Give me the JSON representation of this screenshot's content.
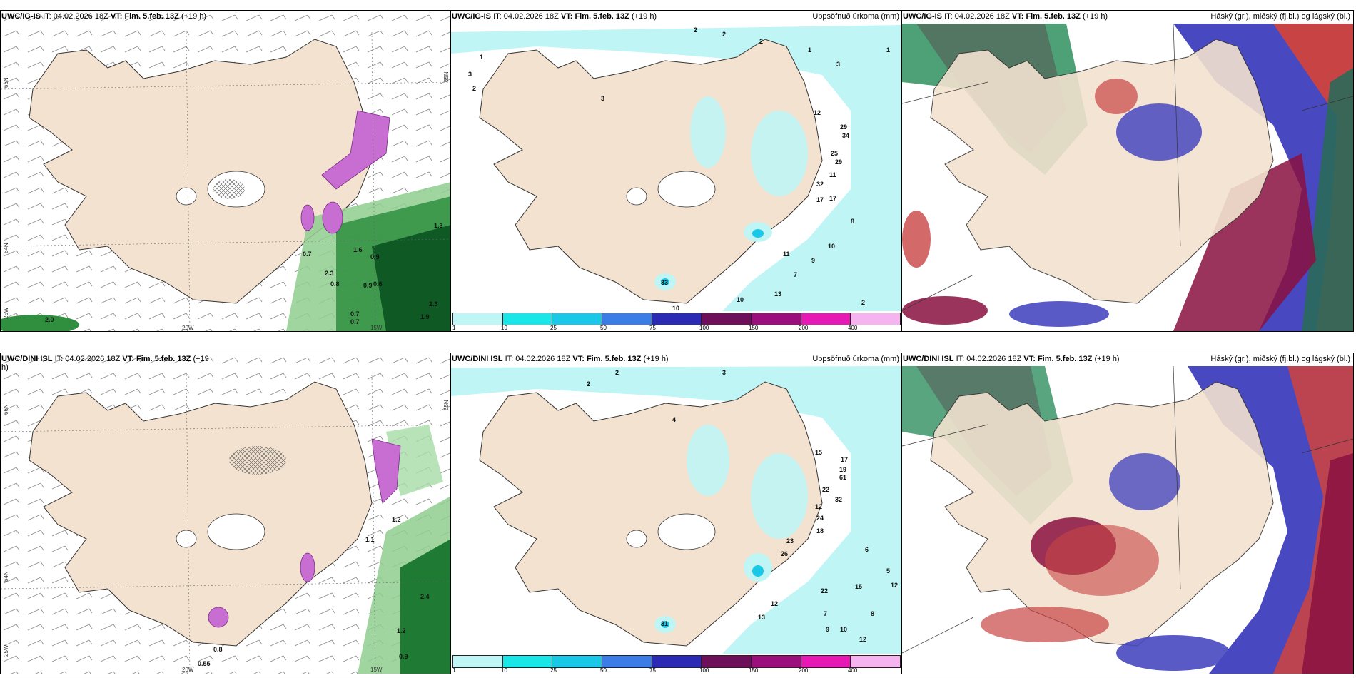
{
  "panels": {
    "top_left": {
      "model": "UWC/IG-IS",
      "it_label": "IT:",
      "it": "04.02.2026 18Z",
      "vt_label": "VT:",
      "vt": "Fim. 5.feb. 13Z",
      "lead": "(+19 h)",
      "title": ""
    },
    "top_mid": {
      "model": "UWC/IG-IS",
      "it_label": "IT:",
      "it": "04.02.2026 18Z",
      "vt_label": "VT:",
      "vt": "Fim. 5.feb. 13Z",
      "lead": "(+19 h)",
      "title": "Uppsöfnuð úrkoma (mm)"
    },
    "top_right": {
      "model": "UWC/IG-IS",
      "it_label": "IT:",
      "it": "04.02.2026 18Z",
      "vt_label": "VT:",
      "vt": "Fim. 5.feb. 13Z",
      "lead": "(+19 h)",
      "title": "Háský (gr.), miðský (fj.bl.) og lágský (bl.)"
    },
    "bot_left": {
      "model": "UWC/DINI ISL",
      "it_label": "IT:",
      "it": "04.02.2026 18Z",
      "vt_label": "VT:",
      "vt": "Fim. 5.feb. 13Z",
      "lead": "(+19",
      "lead2": "h)",
      "title": ""
    },
    "bot_mid": {
      "model": "UWC/DINI ISL",
      "it_label": "IT:",
      "it": "04.02.2026 18Z",
      "vt_label": "VT:",
      "vt": "Fim. 5.feb. 13Z",
      "lead": "(+19 h)",
      "title": "Uppsöfnuð úrkoma (mm)"
    },
    "bot_right": {
      "model": "UWC/DINI ISL",
      "it_label": "IT:",
      "it": "04.02.2026 18Z",
      "vt_label": "VT:",
      "vt": "Fim. 5.feb. 13Z",
      "lead": "(+19 h)",
      "title": "Háský (gr.), miðský (fj.bl.) og lágský (bl.)"
    }
  },
  "axes": {
    "lat66": "66N",
    "lat64": "64N",
    "lat65": "65N",
    "lat25w": "25W",
    "lon20": "20W",
    "lon15": "15W"
  },
  "legend": {
    "ticks": [
      "1",
      "10",
      "25",
      "50",
      "75",
      "100",
      "150",
      "200",
      "400"
    ],
    "colors": [
      "#bff5f5",
      "#19e6e6",
      "#19c8e6",
      "#3c7ce6",
      "#2a2ab4",
      "#6e0f5a",
      "#9b0f7d",
      "#e619b4",
      "#f5b4f0"
    ]
  },
  "precip_top": [
    {
      "v": "2"
    },
    {
      "v": "2"
    },
    {
      "v": "2"
    },
    {
      "v": "1"
    },
    {
      "v": "1"
    },
    {
      "v": "3"
    },
    {
      "v": "1"
    },
    {
      "v": "2"
    },
    {
      "v": "3"
    },
    {
      "v": "3"
    },
    {
      "v": "12"
    },
    {
      "v": "29"
    },
    {
      "v": "34"
    },
    {
      "v": "25"
    },
    {
      "v": "29"
    },
    {
      "v": "11"
    },
    {
      "v": "32"
    },
    {
      "v": "17"
    },
    {
      "v": "17"
    },
    {
      "v": "8"
    },
    {
      "v": "10"
    },
    {
      "v": "11"
    },
    {
      "v": "9"
    },
    {
      "v": "13"
    },
    {
      "v": "10"
    },
    {
      "v": "10"
    },
    {
      "v": "2"
    },
    {
      "v": "7"
    },
    {
      "v": "33"
    }
  ],
  "precip_bot": [
    {
      "v": "2"
    },
    {
      "v": "2"
    },
    {
      "v": "3"
    },
    {
      "v": "4"
    },
    {
      "v": "15"
    },
    {
      "v": "17"
    },
    {
      "v": "19"
    },
    {
      "v": "61"
    },
    {
      "v": "22"
    },
    {
      "v": "32"
    },
    {
      "v": "12"
    },
    {
      "v": "24"
    },
    {
      "v": "18"
    },
    {
      "v": "23"
    },
    {
      "v": "26"
    },
    {
      "v": "22"
    },
    {
      "v": "15"
    },
    {
      "v": "12"
    },
    {
      "v": "13"
    },
    {
      "v": "12"
    },
    {
      "v": "9"
    },
    {
      "v": "10"
    },
    {
      "v": "12"
    },
    {
      "v": "8"
    },
    {
      "v": "7"
    },
    {
      "v": "5"
    },
    {
      "v": "6"
    },
    {
      "v": "31"
    }
  ],
  "snow_top": [
    {
      "v": "0.7"
    },
    {
      "v": "2.3"
    },
    {
      "v": "0.8"
    },
    {
      "v": "1.6"
    },
    {
      "v": "0.9"
    },
    {
      "v": "0.9"
    },
    {
      "v": "0.6"
    },
    {
      "v": "0.7"
    },
    {
      "v": "0.7"
    },
    {
      "v": "1.9"
    },
    {
      "v": "2.3"
    },
    {
      "v": "1.3"
    },
    {
      "v": "2.0"
    }
  ],
  "snow_bot": [
    {
      "v": "-1.1"
    },
    {
      "v": "1.2"
    },
    {
      "v": "2.4"
    },
    {
      "v": "1.2"
    },
    {
      "v": "0.9"
    },
    {
      "v": "0.8"
    },
    {
      "v": "0.55"
    }
  ]
}
